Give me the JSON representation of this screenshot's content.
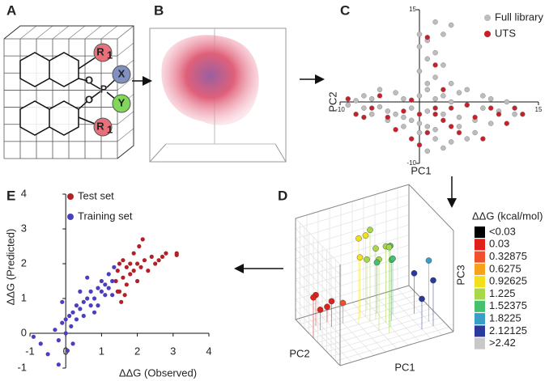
{
  "panel_labels": [
    "A",
    "B",
    "C",
    "D",
    "E"
  ],
  "panel_a": {
    "substituents": [
      {
        "symbol": "R",
        "subscript": "1"
      },
      {
        "symbol": "X"
      },
      {
        "symbol": "Y"
      },
      {
        "symbol": "R",
        "subscript": "1"
      }
    ],
    "atoms": [
      "P",
      "O",
      "O"
    ]
  },
  "chart_data": [
    {
      "type": "scatter",
      "xlabel": "PC1",
      "ylabel": "PC2",
      "xlim": [
        -10,
        15
      ],
      "ylim": [
        -10,
        15
      ],
      "xticks": [
        -10,
        15
      ],
      "yticks": [
        -10,
        15
      ],
      "axes_cross_at_zero": true,
      "legend": "upper right",
      "series": [
        {
          "name": "Full library",
          "color": "#bdbdbd",
          "x": [
            -9,
            -8,
            -7,
            -6,
            -5,
            -4,
            -3,
            -2,
            -1,
            0,
            1,
            2,
            -6,
            -4,
            -2,
            0,
            2,
            4,
            -1,
            1,
            3,
            5,
            7,
            9,
            2,
            4,
            6,
            8,
            10,
            12,
            1,
            2,
            3,
            2,
            1,
            3,
            4,
            2,
            0,
            0,
            1,
            0,
            1,
            4,
            6,
            8,
            5,
            7,
            3,
            1,
            -3,
            -5,
            -7,
            3,
            5,
            9,
            11,
            6,
            -2,
            0
          ],
          "values": [
            -0.5,
            0.2,
            -1,
            0.5,
            -0.8,
            -1.5,
            -2,
            -2.5,
            -3,
            -3.5,
            -4,
            -4.5,
            -2,
            -3,
            -4,
            -5,
            -6,
            -6.5,
            -1,
            -1.5,
            -2,
            -2.5,
            -3,
            -3.5,
            0.5,
            0,
            -0.5,
            -1,
            -1.5,
            -2,
            2,
            4,
            6,
            8,
            10,
            11,
            12.5,
            13,
            11,
            9,
            7,
            5,
            3,
            3,
            2,
            1,
            -4,
            -5,
            -7.5,
            -8,
            1.5,
            2,
            1,
            1,
            1.5,
            0.5,
            0,
            -6,
            0.5,
            1
          ]
        },
        {
          "name": "UTS",
          "color": "#c8202a",
          "x": [
            -9,
            -8,
            -6,
            -5,
            -4,
            -2,
            -1,
            0,
            1,
            2,
            3,
            4,
            5,
            6,
            7,
            8,
            9,
            10,
            13,
            -7,
            -3,
            1,
            2,
            3,
            0,
            4,
            11,
            -1,
            2,
            12
          ],
          "values": [
            0.5,
            -2,
            -1,
            1,
            -2.5,
            -1.5,
            0.3,
            -2,
            -5,
            -2,
            -3,
            -1,
            -5,
            -0.5,
            -2.5,
            -6,
            -1,
            -2,
            -2,
            -2.5,
            -4.5,
            10.5,
            6,
            2,
            -7,
            -4,
            -3.5,
            -6,
            -1,
            -1
          ]
        }
      ]
    },
    {
      "type": "scatter3d",
      "xlabel": "PC1",
      "ylabel": "PC2",
      "zlabel": "PC3",
      "xlim": [
        -5,
        5
      ],
      "ylim": [
        -5,
        5
      ],
      "zlim": [
        -5,
        5
      ],
      "grid": true,
      "legend_title": "ΔΔG (kcal/mol)",
      "classes": [
        {
          "label": "<0.03",
          "color": "#000000"
        },
        {
          "label": "0.03",
          "color": "#e0201b"
        },
        {
          "label": "0.32875",
          "color": "#f0502a"
        },
        {
          "label": "0.6275",
          "color": "#f6a21c"
        },
        {
          "label": "0.92625",
          "color": "#f2e01c"
        },
        {
          "label": "1.225",
          "color": "#a6d84a"
        },
        {
          "label": "1.52375",
          "color": "#45c070"
        },
        {
          "label": "1.8225",
          "color": "#3a9fc6"
        },
        {
          "label": "2.12125",
          "color": "#2a3a9c"
        },
        {
          "label": ">2.42",
          "color": "#c8c8c8"
        }
      ],
      "points": {
        "x": [
          -4,
          -3,
          -4,
          -3,
          -5,
          -2,
          0,
          0.5,
          -0.5,
          0,
          1,
          -1,
          0.5,
          1,
          1.5,
          0,
          2,
          1,
          0.5,
          4,
          4,
          3,
          3.5
        ],
        "y": [
          2,
          3,
          3,
          2,
          1,
          2,
          2,
          1,
          2,
          1,
          0,
          1,
          3,
          -1,
          0,
          -1,
          1,
          2,
          -2,
          -2,
          -3,
          -3,
          0
        ],
        "z": [
          -3,
          -3.5,
          -2,
          -2.5,
          -1,
          -3,
          3,
          2,
          1,
          4,
          2.5,
          3.5,
          0,
          3,
          1,
          2,
          0.5,
          0,
          3.5,
          1,
          -0.5,
          -2,
          -1
        ],
        "class": [
          1,
          1,
          1,
          1,
          1,
          2,
          4,
          5,
          4,
          5,
          5,
          4,
          5,
          6,
          6,
          5,
          6,
          6,
          5,
          7,
          8,
          8,
          8
        ]
      }
    },
    {
      "type": "scatter",
      "xlabel": "ΔΔG (Observed)",
      "ylabel": "ΔΔG (Predicted)",
      "xlim": [
        -1,
        4
      ],
      "ylim": [
        -1,
        4
      ],
      "xticks": [
        -1,
        0,
        1,
        2,
        3,
        4
      ],
      "yticks": [
        -1,
        0,
        1,
        2,
        3,
        4
      ],
      "axes_cross_at_zero": true,
      "legend": "upper left",
      "series": [
        {
          "name": "Test set",
          "color": "#b22028",
          "x": [
            1.4,
            1.45,
            1.5,
            1.5,
            1.6,
            1.6,
            1.7,
            1.7,
            1.8,
            1.8,
            1.9,
            1.9,
            2.0,
            2.0,
            2.1,
            2.2,
            2.3,
            2.4,
            2.5,
            2.6,
            2.7,
            2.8,
            3.1,
            3.1,
            1.55,
            1.65,
            2.05,
            2.15,
            1.45
          ],
          "values": [
            1.5,
            1.8,
            2.0,
            1.2,
            1.6,
            2.1,
            1.9,
            1.4,
            2.0,
            1.7,
            1.8,
            2.3,
            2.0,
            1.5,
            1.9,
            2.1,
            1.8,
            2.2,
            2.0,
            2.1,
            2.2,
            2.3,
            2.25,
            2.3,
            0.9,
            1.1,
            2.5,
            2.7,
            1.2
          ]
        },
        {
          "name": "Training set",
          "color": "#4b3fc0",
          "x": [
            -0.9,
            -0.7,
            -0.5,
            -0.3,
            -0.2,
            -0.1,
            0,
            0,
            0.1,
            0.15,
            0.2,
            0.3,
            0.3,
            0.4,
            0.5,
            0.5,
            0.6,
            0.7,
            0.7,
            0.8,
            0.9,
            0.9,
            1.0,
            1.0,
            1.1,
            1.1,
            1.2,
            1.2,
            1.3,
            1.35,
            0.6,
            0.4,
            -0.1,
            0.2,
            -0.2,
            0.05,
            0.8,
            1.3
          ],
          "values": [
            -0.1,
            -0.3,
            -0.6,
            0.1,
            -0.2,
            0.3,
            0,
            0.4,
            0.5,
            0.2,
            0.6,
            0.4,
            0.8,
            0.7,
            0.9,
            0.5,
            1.0,
            0.8,
            1.2,
            1.0,
            1.3,
            0.8,
            1.2,
            1.5,
            1.1,
            1.4,
            1.7,
            1.3,
            1.5,
            1.9,
            1.6,
            1.2,
            0.9,
            -0.3,
            -0.9,
            -0.5,
            0.6,
            1.1
          ]
        }
      ]
    }
  ]
}
